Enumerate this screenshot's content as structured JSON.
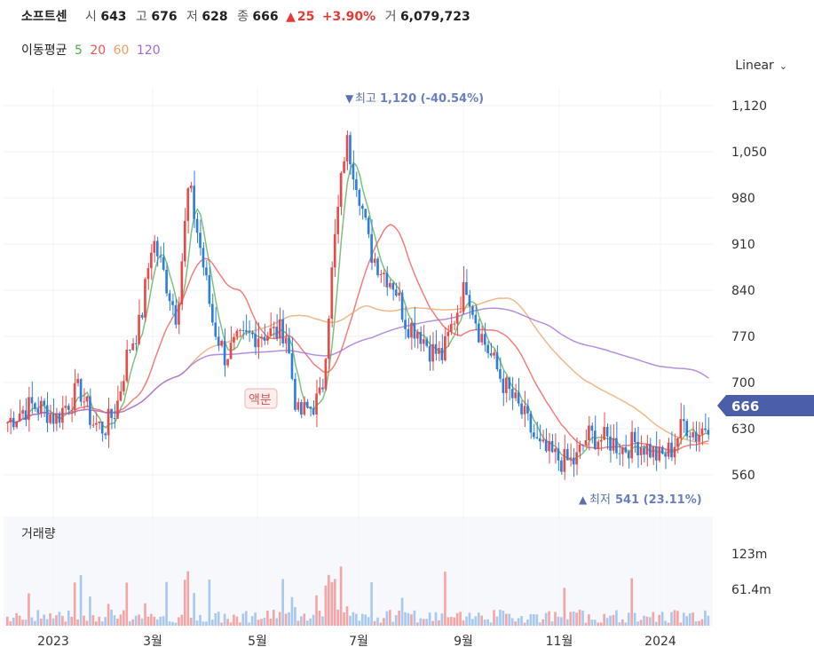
{
  "header": {
    "name": "소프트센",
    "open_label": "시",
    "open": "643",
    "high_label": "고",
    "high": "676",
    "low_label": "저",
    "low": "628",
    "close_label": "종",
    "close": "666",
    "change_icon": "triangle-up-icon",
    "change": "25",
    "change_pct": "+3.90%",
    "volume_label": "거",
    "volume": "6,079,723"
  },
  "moving_average": {
    "label": "이동평균",
    "periods": [
      {
        "value": "5",
        "color": "#4caf50"
      },
      {
        "value": "20",
        "color": "#ef5350"
      },
      {
        "value": "60",
        "color": "#f0a060"
      },
      {
        "value": "120",
        "color": "#9c6ade"
      }
    ]
  },
  "scale": {
    "label": "Linear",
    "icon": "chevron-down-icon"
  },
  "chart_data": {
    "type": "candlestick",
    "y_ticks": [
      "1,120",
      "1,050",
      "980",
      "910",
      "840",
      "770",
      "700",
      "630",
      "560"
    ],
    "x_ticks": [
      "2023",
      "3월",
      "5월",
      "7월",
      "9월",
      "11월",
      "2024"
    ],
    "ylim": [
      525,
      1150
    ],
    "current_price": "666",
    "high_annotation": {
      "label": "최고",
      "value": "1,120 (-40.54%)",
      "icon": "triangle-down-icon"
    },
    "low_annotation": {
      "label": "최저",
      "value": "541 (23.11%)",
      "icon": "triangle-up-icon"
    },
    "split_annotation": "액분",
    "close_series": [
      640,
      655,
      665,
      660,
      645,
      670,
      690,
      640,
      630,
      660,
      750,
      790,
      920,
      860,
      800,
      1000,
      900,
      790,
      740,
      760,
      770,
      775,
      775,
      780,
      650,
      660,
      680,
      900,
      1070,
      1000,
      900,
      870,
      850,
      790,
      780,
      750,
      740,
      800,
      850,
      780,
      740,
      700,
      670,
      640,
      600,
      590,
      580,
      580,
      620,
      615,
      610,
      600,
      610,
      600,
      585,
      600,
      640,
      620,
      640
    ],
    "volume_panel": {
      "title": "거래량",
      "y_ticks": [
        "123m",
        "61.4m"
      ],
      "ylim": [
        0,
        145
      ]
    }
  }
}
